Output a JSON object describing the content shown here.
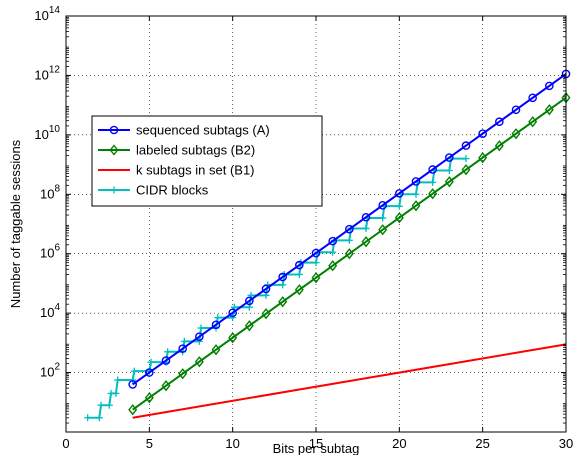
{
  "chart_data": {
    "type": "line",
    "xlabel": "Bits per subtag",
    "ylabel": "Number of taggable sessions",
    "xlim": [
      0,
      30
    ],
    "ylim_log10": [
      0,
      14
    ],
    "yscale": "log",
    "grid": true,
    "grid_style": "dotted",
    "legend_position": "upper-left",
    "x_ticks": [
      0,
      5,
      10,
      15,
      20,
      25,
      30
    ],
    "y_ticks": [
      {
        "exp": 2,
        "base": "10",
        "power": "2"
      },
      {
        "exp": 4,
        "base": "10",
        "power": "4"
      },
      {
        "exp": 6,
        "base": "10",
        "power": "6"
      },
      {
        "exp": 8,
        "base": "10",
        "power": "8"
      },
      {
        "exp": 10,
        "base": "10",
        "power": "10"
      },
      {
        "exp": 12,
        "base": "10",
        "power": "12"
      },
      {
        "exp": 14,
        "base": "10",
        "power": "14"
      }
    ],
    "series": [
      {
        "name": "sequenced subtags (A)",
        "color": "#0000ff",
        "marker": "circle",
        "style": "line",
        "x": [
          4,
          30
        ],
        "log10_y": [
          1.6,
          12.05
        ],
        "marker_x": [
          4,
          5,
          6,
          7,
          8,
          9,
          10,
          11,
          12,
          13,
          14,
          15,
          16,
          17,
          18,
          19,
          20,
          21,
          22,
          23,
          24,
          25,
          26,
          27,
          28,
          29,
          30
        ]
      },
      {
        "name": "labeled subtags (B2)",
        "color": "#008000",
        "marker": "diamond",
        "style": "line",
        "x": [
          4,
          30
        ],
        "log10_y": [
          0.75,
          11.25
        ],
        "marker_x": [
          4,
          5,
          6,
          7,
          8,
          9,
          10,
          11,
          12,
          13,
          14,
          15,
          16,
          17,
          18,
          19,
          20,
          21,
          22,
          23,
          24,
          25,
          26,
          27,
          28,
          29,
          30
        ]
      },
      {
        "name": "k subtags in set (B1)",
        "color": "#ff0000",
        "marker": "none",
        "style": "line",
        "x": [
          4,
          30
        ],
        "log10_y": [
          0.48,
          2.95
        ]
      },
      {
        "name": "CIDR blocks",
        "color": "#00bfbf",
        "marker": "plus",
        "style": "staircase",
        "points": [
          [
            1.3,
            0.48
          ],
          [
            2.0,
            0.48
          ],
          [
            2.1,
            0.9
          ],
          [
            2.6,
            0.9
          ],
          [
            2.7,
            1.3
          ],
          [
            3.0,
            1.3
          ],
          [
            3.1,
            1.75
          ],
          [
            4.0,
            1.75
          ],
          [
            4.1,
            2.05
          ],
          [
            5.0,
            2.05
          ],
          [
            5.1,
            2.35
          ],
          [
            6.0,
            2.35
          ],
          [
            6.1,
            2.7
          ],
          [
            7.0,
            2.7
          ],
          [
            7.1,
            3.05
          ],
          [
            8.0,
            3.05
          ],
          [
            8.1,
            3.5
          ],
          [
            9.0,
            3.5
          ],
          [
            9.1,
            3.85
          ],
          [
            10.0,
            3.85
          ],
          [
            10.1,
            4.2
          ],
          [
            11.0,
            4.2
          ],
          [
            11.1,
            4.6
          ],
          [
            12.0,
            4.6
          ],
          [
            12.1,
            4.95
          ],
          [
            13.0,
            4.95
          ],
          [
            13.1,
            5.3
          ],
          [
            14.0,
            5.3
          ],
          [
            14.1,
            5.7
          ],
          [
            15.0,
            5.7
          ],
          [
            15.1,
            6.05
          ],
          [
            16.0,
            6.05
          ],
          [
            16.1,
            6.45
          ],
          [
            17.0,
            6.45
          ],
          [
            17.1,
            6.85
          ],
          [
            18.0,
            6.85
          ],
          [
            18.1,
            7.2
          ],
          [
            19.0,
            7.2
          ],
          [
            19.1,
            7.6
          ],
          [
            20.0,
            7.6
          ],
          [
            20.1,
            8.0
          ],
          [
            21.0,
            8.0
          ],
          [
            21.1,
            8.4
          ],
          [
            22.0,
            8.4
          ],
          [
            22.1,
            8.8
          ],
          [
            23.0,
            8.8
          ],
          [
            23.1,
            9.2
          ],
          [
            24.0,
            9.2
          ]
        ]
      }
    ]
  }
}
